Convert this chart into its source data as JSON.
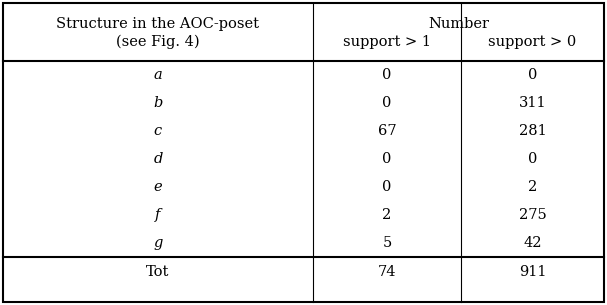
{
  "col0_header_line1": "Structure in the AOC-poset",
  "col0_header_line2": "(see Fig. 4)",
  "num_header": "Number",
  "col1_header": "support > 1",
  "col2_header": "support > 0",
  "rows": [
    [
      "a",
      "0",
      "0"
    ],
    [
      "b",
      "0",
      "311"
    ],
    [
      "c",
      "67",
      "281"
    ],
    [
      "d",
      "0",
      "0"
    ],
    [
      "e",
      "0",
      "2"
    ],
    [
      "f",
      "2",
      "275"
    ],
    [
      "g",
      "5",
      "42"
    ]
  ],
  "total_row": [
    "Tot",
    "74",
    "911"
  ],
  "bg_color": "#ffffff",
  "text_color": "#000000",
  "line_color": "#000000",
  "font_size": 10.5,
  "fig_width": 6.07,
  "fig_height": 3.05,
  "dpi": 100
}
